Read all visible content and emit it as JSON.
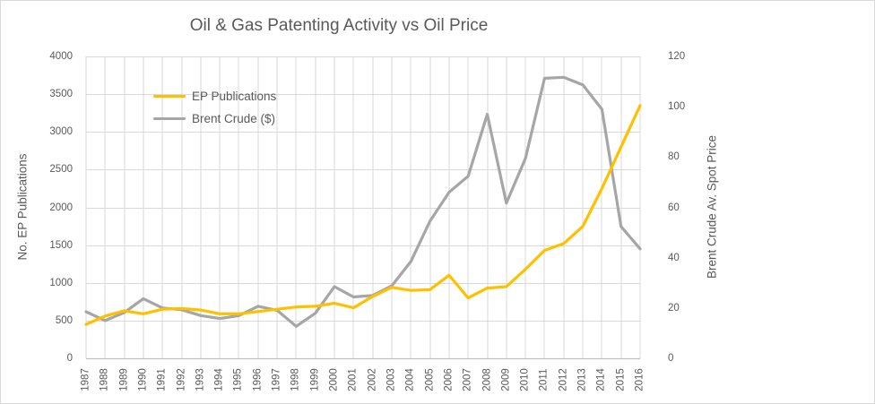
{
  "chart_data": {
    "type": "line",
    "title": "Oil & Gas Patenting Activity vs Oil Price",
    "categories": [
      "1987",
      "1988",
      "1989",
      "1990",
      "1991",
      "1992",
      "1993",
      "1994",
      "1995",
      "1996",
      "1997",
      "1998",
      "1999",
      "2000",
      "2001",
      "2002",
      "2003",
      "2004",
      "2005",
      "2006",
      "2007",
      "2008",
      "2009",
      "2010",
      "2011",
      "2012",
      "2013",
      "2014",
      "2015",
      "2016"
    ],
    "series": [
      {
        "name": "EP Publications",
        "axis": "left",
        "color": "#FFC000",
        "values": [
          450,
          560,
          630,
          590,
          650,
          660,
          640,
          590,
          590,
          620,
          650,
          680,
          690,
          730,
          670,
          820,
          940,
          900,
          910,
          1100,
          800,
          930,
          950,
          1180,
          1430,
          1520,
          1750,
          2250,
          2800,
          3350
        ]
      },
      {
        "name": "Brent Crude ($)",
        "axis": "right",
        "color": "#A6A6A6",
        "values": [
          18.5,
          15.0,
          18.2,
          23.7,
          20.0,
          19.3,
          17.0,
          15.8,
          17.0,
          20.7,
          19.1,
          12.7,
          17.9,
          28.5,
          24.4,
          25.0,
          28.8,
          38.5,
          54.5,
          66.0,
          72.4,
          97.0,
          61.7,
          79.5,
          111.3,
          111.7,
          108.7,
          99.0,
          52.4,
          43.5
        ]
      }
    ],
    "left_axis": {
      "label": "No. EP Publications",
      "min": 0,
      "max": 4000,
      "ticks": [
        0,
        500,
        1000,
        1500,
        2000,
        2500,
        3000,
        3500,
        4000
      ]
    },
    "right_axis": {
      "label": "Brent Crude Av. Spot Price",
      "min": 0,
      "max": 120,
      "ticks": [
        0,
        20,
        40,
        60,
        80,
        100,
        120
      ]
    },
    "grid": true,
    "legend_position": "inside-top-left",
    "colors": {
      "text": "#595959",
      "gridline": "#D9D9D9",
      "axis_line": "#BFBFBF",
      "background": "#FFFFFF"
    }
  }
}
